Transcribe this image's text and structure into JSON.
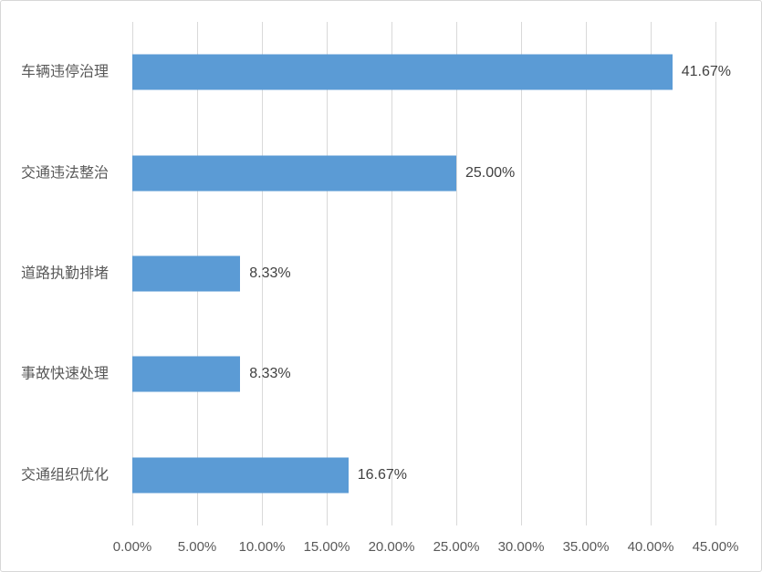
{
  "chart_data": {
    "type": "bar",
    "orientation": "horizontal",
    "title": "",
    "xlabel": "",
    "ylabel": "",
    "categories": [
      "车辆违停治理",
      "交通违法整治",
      "道路执勤排堵",
      "事故快速处理",
      "交通组织优化"
    ],
    "values": [
      41.67,
      25.0,
      8.33,
      8.33,
      16.67
    ],
    "data_labels": [
      "41.67%",
      "25.00%",
      "8.33%",
      "8.33%",
      "16.67%"
    ],
    "xlim": [
      0,
      45
    ],
    "x_ticks": [
      {
        "value": 0,
        "label": "0.00%"
      },
      {
        "value": 5,
        "label": "5.00%"
      },
      {
        "value": 10,
        "label": "10.00%"
      },
      {
        "value": 15,
        "label": "15.00%"
      },
      {
        "value": 20,
        "label": "20.00%"
      },
      {
        "value": 25,
        "label": "25.00%"
      },
      {
        "value": 30,
        "label": "30.00%"
      },
      {
        "value": 35,
        "label": "35.00%"
      },
      {
        "value": 40,
        "label": "40.00%"
      },
      {
        "value": 45,
        "label": "45.00%"
      }
    ],
    "grid": true,
    "legend": "none",
    "colors": {
      "bar": "#5B9BD5",
      "gridline": "#d9d9d9",
      "axis_text": "#595959",
      "data_label_text": "#404040",
      "frame_border": "#d7d7d7",
      "background": "#ffffff"
    }
  }
}
